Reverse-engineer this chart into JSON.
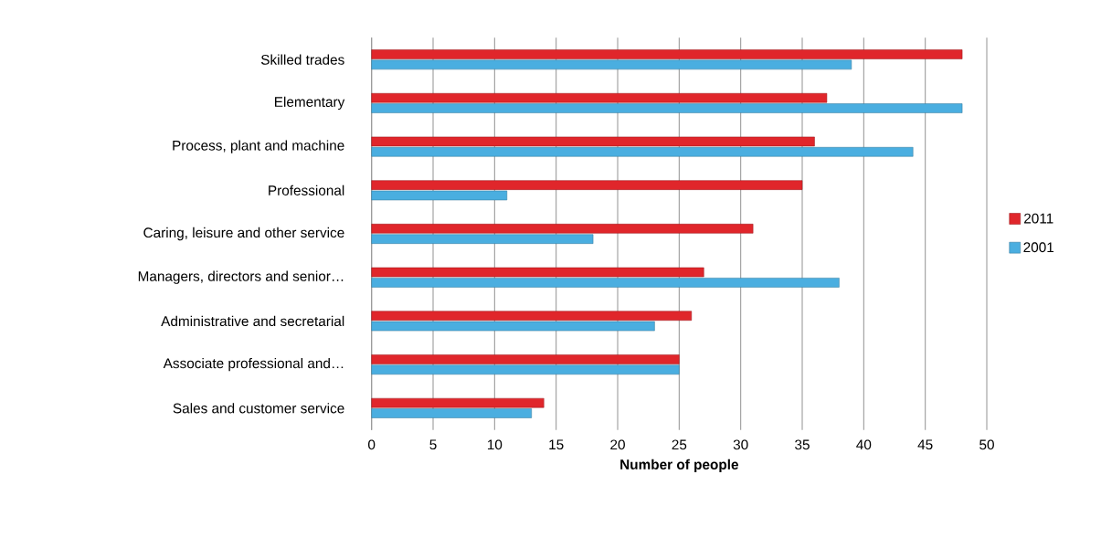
{
  "chart_data": {
    "type": "bar",
    "orientation": "horizontal",
    "xlabel": "Number of people",
    "categories": [
      "Skilled trades",
      "Elementary",
      "Process, plant and machine",
      "Professional",
      "Caring, leisure and other service",
      "Managers, directors and senior…",
      "Administrative and secretarial",
      "Associate professional and…",
      "Sales and customer service"
    ],
    "series": [
      {
        "name": "2011",
        "color": "#e0262b",
        "values": [
          48,
          37,
          36,
          35,
          31,
          27,
          26,
          25,
          14
        ]
      },
      {
        "name": "2001",
        "color": "#4aaee0",
        "values": [
          39,
          48,
          44,
          11,
          18,
          38,
          23,
          25,
          13
        ]
      }
    ],
    "xlim": [
      0,
      50
    ],
    "xticks": [
      0,
      5,
      10,
      15,
      20,
      25,
      30,
      35,
      40,
      45,
      50
    ],
    "grid": "x",
    "legend": "right"
  }
}
